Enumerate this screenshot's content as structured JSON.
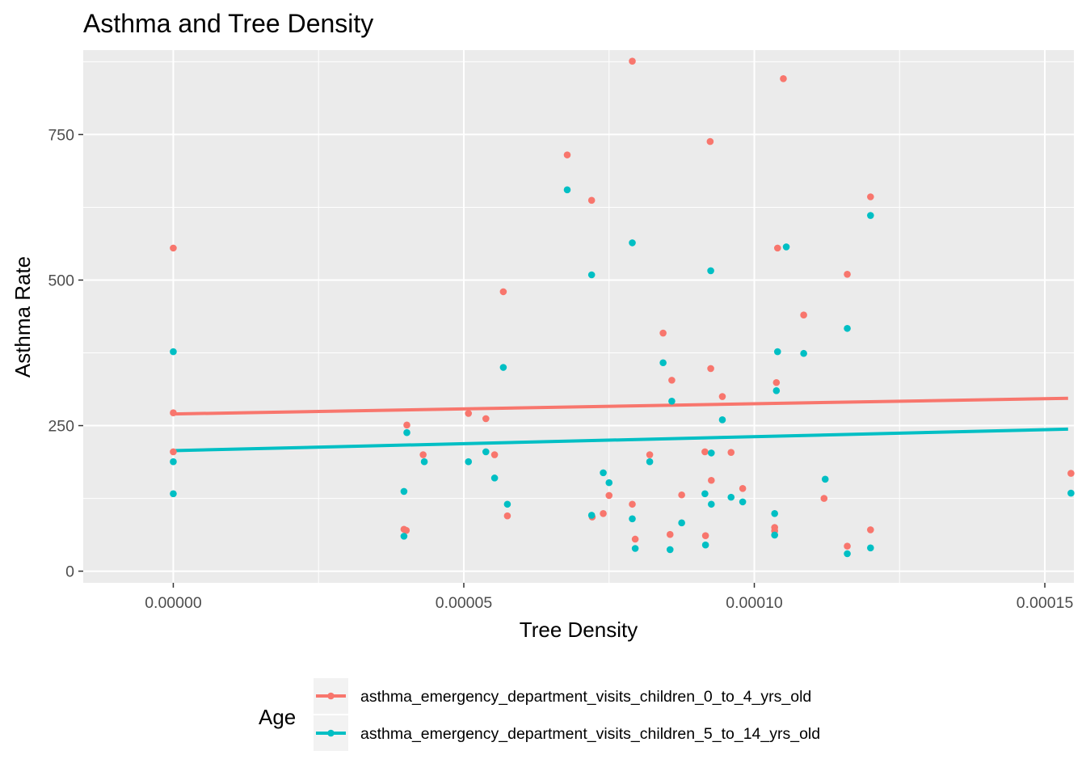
{
  "chart_data": {
    "type": "scatter",
    "title": "Asthma and Tree Density",
    "xlabel": "Tree Density",
    "ylabel": "Asthma Rate",
    "xlim": [
      -1.55e-05,
      0.000155
    ],
    "ylim": [
      -20,
      895
    ],
    "x_ticks": [
      {
        "value": 0,
        "label": "0.00000"
      },
      {
        "value": 5e-05,
        "label": "0.00005"
      },
      {
        "value": 0.0001,
        "label": "0.00010"
      },
      {
        "value": 0.00015,
        "label": "0.00015"
      }
    ],
    "y_ticks": [
      {
        "value": 0,
        "label": "0"
      },
      {
        "value": 250,
        "label": "250"
      },
      {
        "value": 500,
        "label": "500"
      },
      {
        "value": 750,
        "label": "750"
      }
    ],
    "grid": true,
    "legend": {
      "title": "Age",
      "position": "bottom"
    },
    "series": [
      {
        "name": "asthma_emergency_department_visits_children_0_to_4_yrs_old",
        "color": "#F8766D",
        "trend": {
          "x": [
            0,
            0.000154
          ],
          "y": [
            270,
            297
          ]
        },
        "points": [
          [
            0,
            555
          ],
          [
            0,
            272
          ],
          [
            0,
            205
          ],
          [
            3.97e-05,
            72
          ],
          [
            4.01e-05,
            70
          ],
          [
            4.02e-05,
            251
          ],
          [
            4.3e-05,
            200
          ],
          [
            5.08e-05,
            271
          ],
          [
            5.38e-05,
            262
          ],
          [
            5.53e-05,
            200
          ],
          [
            5.68e-05,
            480
          ],
          [
            5.75e-05,
            95
          ],
          [
            6.78e-05,
            715
          ],
          [
            7.2e-05,
            637
          ],
          [
            7.21e-05,
            93
          ],
          [
            7.4e-05,
            99
          ],
          [
            7.5e-05,
            130
          ],
          [
            7.9e-05,
            876
          ],
          [
            7.9e-05,
            115
          ],
          [
            7.95e-05,
            55
          ],
          [
            8.2e-05,
            200
          ],
          [
            8.43e-05,
            409
          ],
          [
            8.55e-05,
            63
          ],
          [
            8.58e-05,
            328
          ],
          [
            8.75e-05,
            131
          ],
          [
            9.15e-05,
            205
          ],
          [
            9.16e-05,
            61
          ],
          [
            9.24e-05,
            738
          ],
          [
            9.25e-05,
            348
          ],
          [
            9.26e-05,
            156
          ],
          [
            9.45e-05,
            300
          ],
          [
            9.6e-05,
            204
          ],
          [
            9.8e-05,
            142
          ],
          [
            0.0001035,
            75
          ],
          [
            0.0001035,
            69
          ],
          [
            0.0001038,
            324
          ],
          [
            0.000104,
            555
          ],
          [
            0.000105,
            846
          ],
          [
            0.0001085,
            440
          ],
          [
            0.000112,
            125
          ],
          [
            0.000116,
            510
          ],
          [
            0.000116,
            43
          ],
          [
            0.00012,
            643
          ],
          [
            0.00012,
            71
          ],
          [
            0.0001545,
            168
          ]
        ]
      },
      {
        "name": "asthma_emergency_department_visits_children_5_to_14_yrs_old",
        "color": "#00BFC4",
        "trend": {
          "x": [
            0,
            0.000154
          ],
          "y": [
            207,
            244
          ]
        },
        "points": [
          [
            0,
            377
          ],
          [
            0,
            188
          ],
          [
            0,
            133
          ],
          [
            3.97e-05,
            137
          ],
          [
            3.97e-05,
            60
          ],
          [
            4.02e-05,
            238
          ],
          [
            4.32e-05,
            188
          ],
          [
            5.08e-05,
            188
          ],
          [
            5.38e-05,
            205
          ],
          [
            5.53e-05,
            160
          ],
          [
            5.68e-05,
            350
          ],
          [
            5.75e-05,
            115
          ],
          [
            6.78e-05,
            655
          ],
          [
            7.2e-05,
            509
          ],
          [
            7.2e-05,
            96
          ],
          [
            7.4e-05,
            169
          ],
          [
            7.5e-05,
            152
          ],
          [
            7.9e-05,
            564
          ],
          [
            7.9e-05,
            90
          ],
          [
            7.95e-05,
            39
          ],
          [
            8.2e-05,
            188
          ],
          [
            8.43e-05,
            358
          ],
          [
            8.55e-05,
            37
          ],
          [
            8.58e-05,
            292
          ],
          [
            8.75e-05,
            83
          ],
          [
            9.15e-05,
            133
          ],
          [
            9.16e-05,
            45
          ],
          [
            9.25e-05,
            516
          ],
          [
            9.26e-05,
            203
          ],
          [
            9.26e-05,
            115
          ],
          [
            9.45e-05,
            260
          ],
          [
            9.6e-05,
            127
          ],
          [
            9.8e-05,
            119
          ],
          [
            0.0001035,
            99
          ],
          [
            0.0001035,
            62
          ],
          [
            0.0001038,
            310
          ],
          [
            0.000104,
            377
          ],
          [
            0.0001055,
            557
          ],
          [
            0.0001085,
            374
          ],
          [
            0.0001122,
            158
          ],
          [
            0.000116,
            417
          ],
          [
            0.000116,
            30
          ],
          [
            0.00012,
            611
          ],
          [
            0.00012,
            40
          ],
          [
            0.0001545,
            134
          ]
        ]
      }
    ]
  }
}
